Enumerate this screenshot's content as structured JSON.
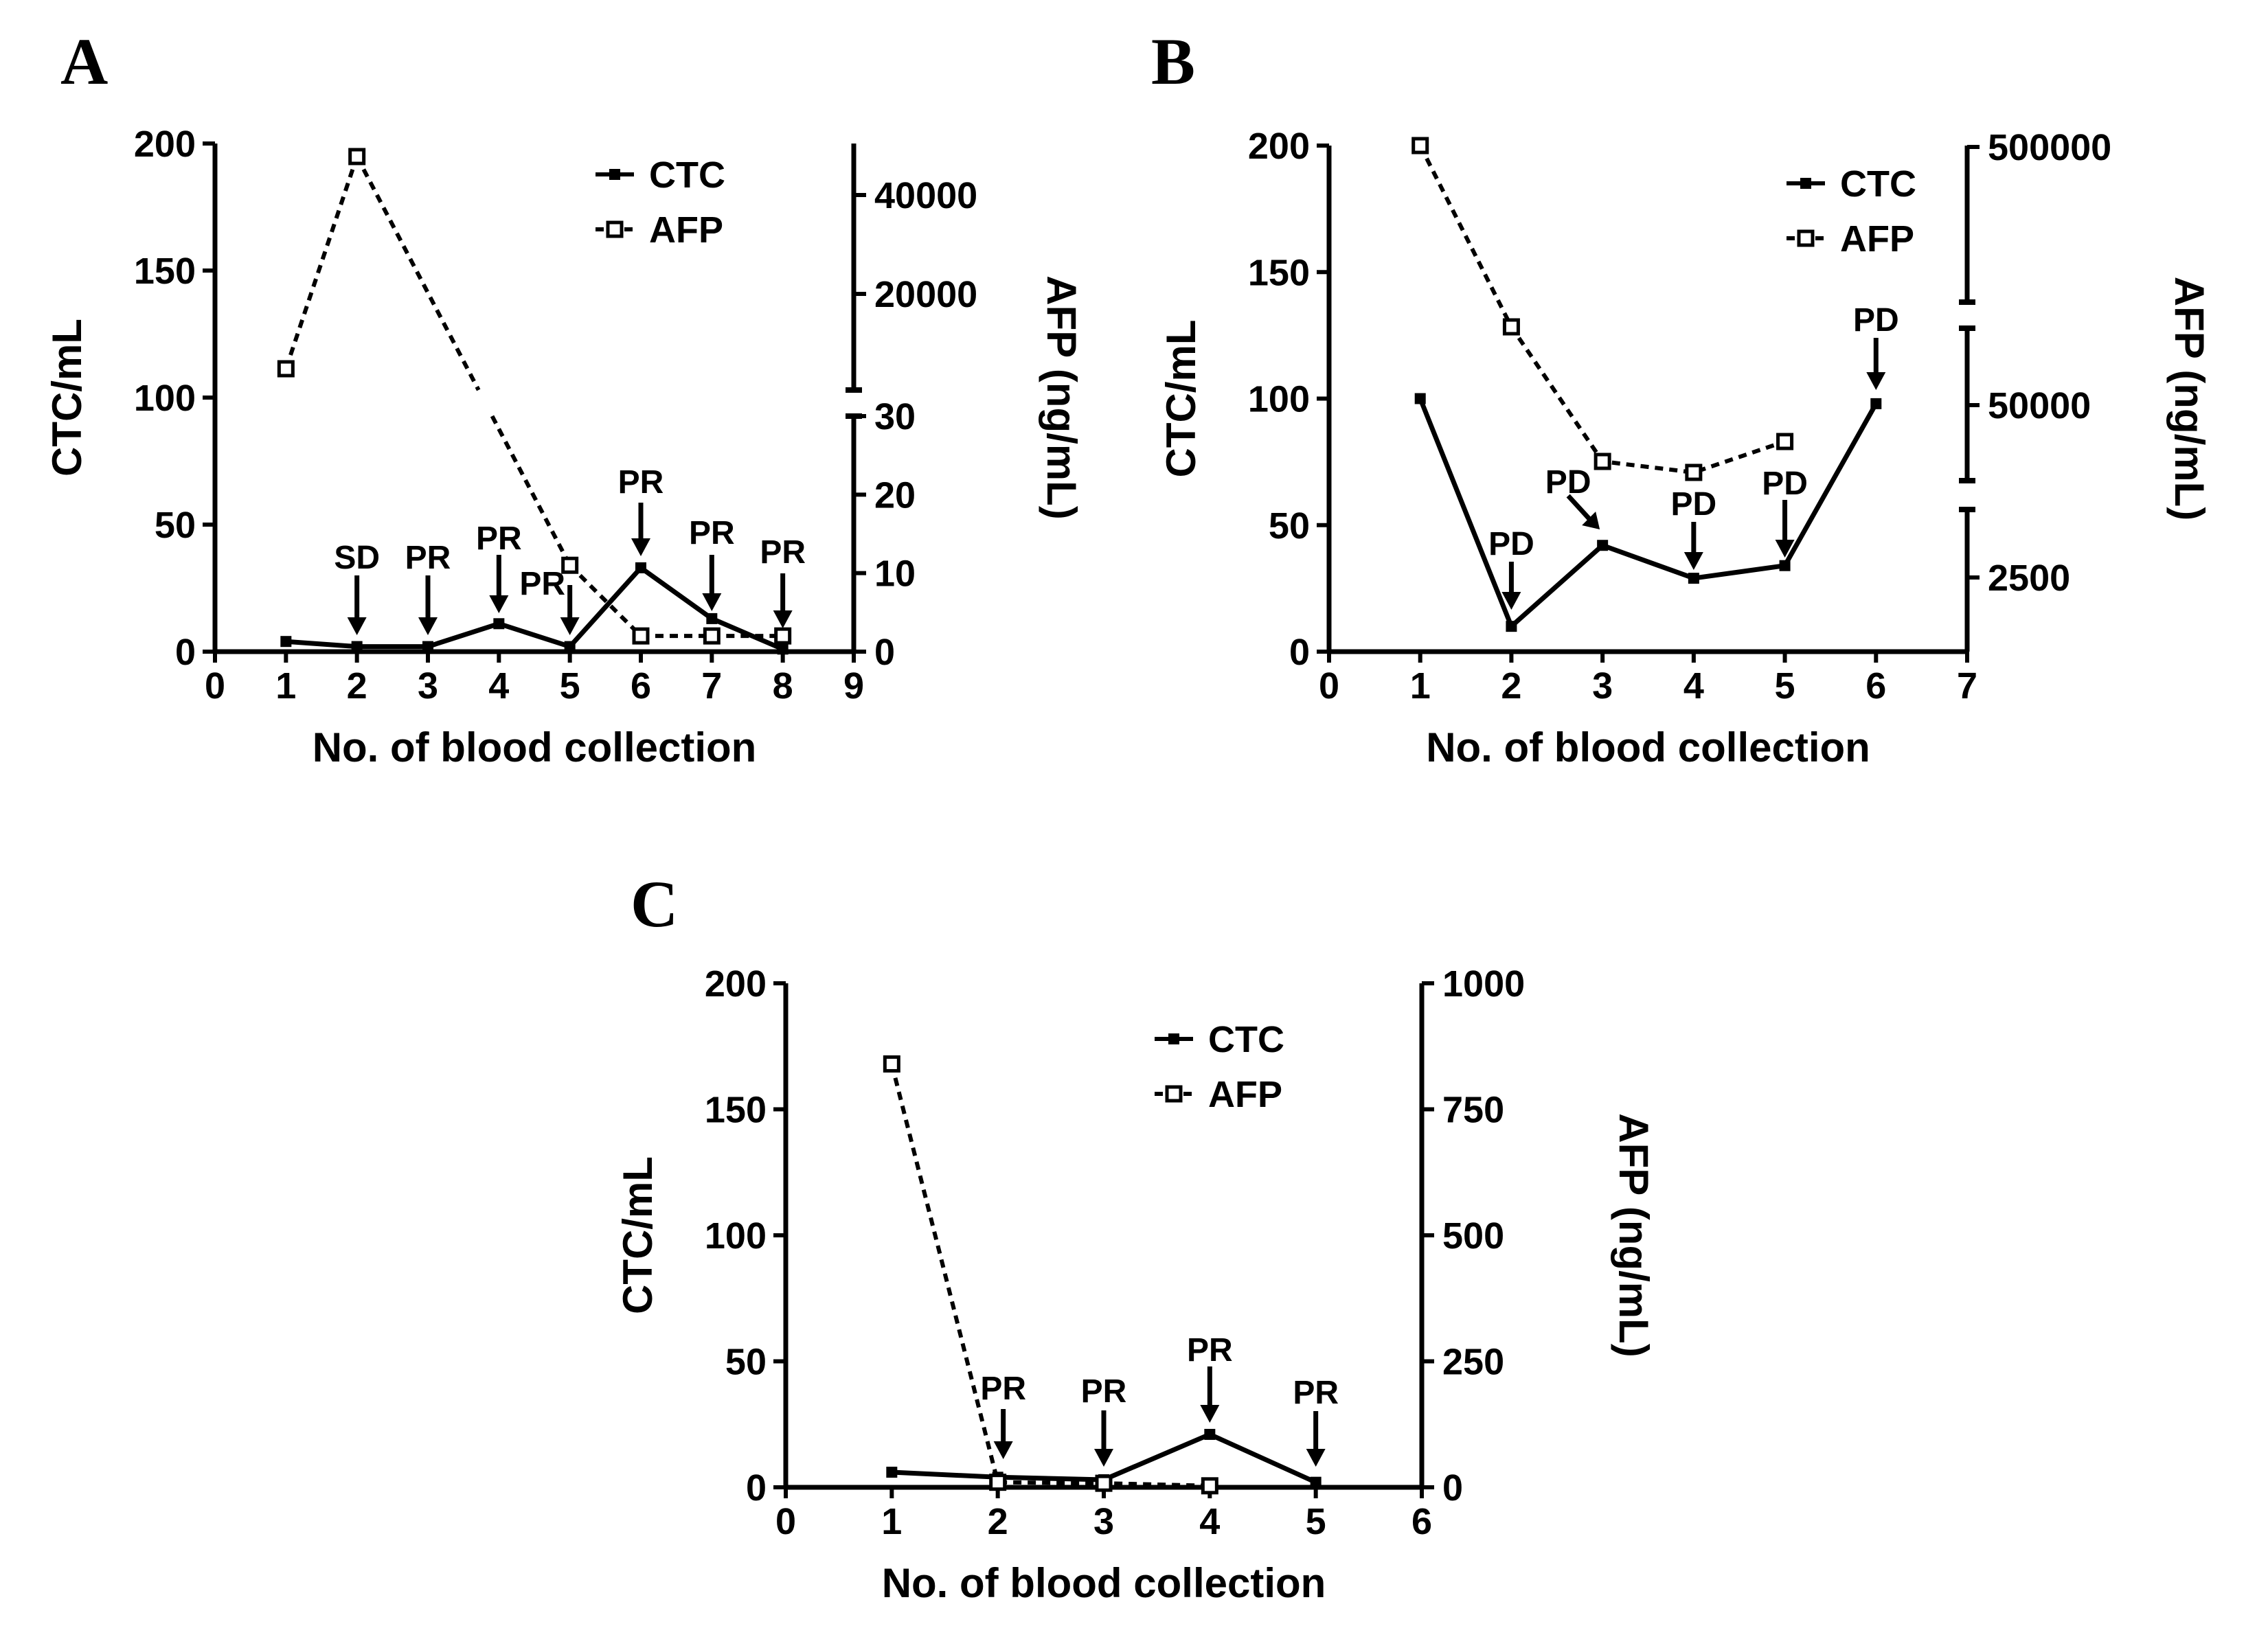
{
  "colors": {
    "ink": "#000000",
    "background": "#ffffff"
  },
  "charts": [
    {
      "panel": "A",
      "chart_data": {
        "type": "line",
        "xlabel": "No. of blood collection",
        "ylabel": "CTC/mL",
        "y2label": "AFP (ng/mL)",
        "xlim": [
          0,
          9
        ],
        "xticks": [
          "0",
          "1",
          "2",
          "3",
          "4",
          "5",
          "6",
          "7",
          "8",
          "9"
        ],
        "ylim": [
          0,
          200
        ],
        "yticks": [
          "0",
          "50",
          "100",
          "150",
          "200"
        ],
        "y2_axis": {
          "broken": true,
          "lower": {
            "ticks": [
              "0",
              "10",
              "20",
              "30"
            ],
            "range": [
              0,
              30
            ]
          },
          "upper": {
            "ticks": [
              "20000",
              "40000"
            ]
          }
        },
        "legend": {
          "position": "top-right",
          "entries": [
            {
              "label": "CTC",
              "style": "solid"
            },
            {
              "label": "AFP",
              "style": "dashed"
            }
          ]
        },
        "series": [
          {
            "name": "CTC",
            "style": "solid",
            "marker": "filled-square",
            "x": [
              1,
              2,
              3,
              4,
              5,
              6,
              7,
              8
            ],
            "y": [
              4,
              2,
              2,
              11,
              2,
              33,
              13,
              1
            ]
          },
          {
            "name": "AFP",
            "style": "dashed",
            "marker": "open-square",
            "x": [
              1,
              2,
              5,
              6,
              7,
              8
            ],
            "y": [
              8400,
              48000,
              11,
              2,
              2,
              2
            ],
            "afp_display": [
              "8400",
              "48000",
              "11",
              "2",
              "2",
              "2"
            ]
          }
        ],
        "annotations": [
          {
            "x": 2,
            "text": "SD"
          },
          {
            "x": 3,
            "text": "PR"
          },
          {
            "x": 4,
            "text": "PR"
          },
          {
            "x": 5,
            "text": "PR"
          },
          {
            "x": 6,
            "text": "PR"
          },
          {
            "x": 7,
            "text": "PR"
          },
          {
            "x": 8,
            "text": "PR"
          }
        ]
      }
    },
    {
      "panel": "B",
      "chart_data": {
        "type": "line",
        "xlabel": "No. of blood collection",
        "ylabel": "CTC/mL",
        "y2label": "AFP (ng/mL)",
        "xlim": [
          0,
          7
        ],
        "xticks": [
          "0",
          "1",
          "2",
          "3",
          "4",
          "5",
          "6",
          "7"
        ],
        "ylim": [
          0,
          200
        ],
        "yticks": [
          "0",
          "50",
          "100",
          "150",
          "200"
        ],
        "y2_axis": {
          "broken": true,
          "ticks": [
            "2500",
            "50000",
            "500000"
          ]
        },
        "legend": {
          "position": "top-right",
          "entries": [
            {
              "label": "CTC",
              "style": "solid"
            },
            {
              "label": "AFP",
              "style": "dashed"
            }
          ]
        },
        "series": [
          {
            "name": "CTC",
            "style": "solid",
            "marker": "filled-square",
            "x": [
              1,
              2,
              3,
              4,
              5,
              6
            ],
            "y": [
              100,
              10,
              42,
              29,
              34,
              98
            ]
          },
          {
            "name": "AFP",
            "style": "dashed",
            "marker": "open-square",
            "x": [
              1,
              2,
              3,
              4,
              5
            ],
            "y": [
              500000,
              180000,
              30000,
              27000,
              40000
            ]
          }
        ],
        "annotations": [
          {
            "x": 2,
            "text": "PD"
          },
          {
            "x": 3,
            "text": "PD"
          },
          {
            "x": 4,
            "text": "PD"
          },
          {
            "x": 5,
            "text": "PD"
          },
          {
            "x": 6,
            "text": "PD"
          }
        ]
      }
    },
    {
      "panel": "C",
      "chart_data": {
        "type": "line",
        "xlabel": "No. of blood collection",
        "ylabel": "CTC/mL",
        "y2label": "AFP (ng/mL)",
        "xlim": [
          0,
          6
        ],
        "xticks": [
          "0",
          "1",
          "2",
          "3",
          "4",
          "5",
          "6"
        ],
        "ylim": [
          0,
          200
        ],
        "yticks": [
          "0",
          "50",
          "100",
          "150",
          "200"
        ],
        "y2lim": [
          0,
          1000
        ],
        "y2ticks": [
          "0",
          "250",
          "500",
          "750",
          "1000"
        ],
        "legend": {
          "position": "top-right",
          "entries": [
            {
              "label": "CTC",
              "style": "solid"
            },
            {
              "label": "AFP",
              "style": "dashed"
            }
          ]
        },
        "series": [
          {
            "name": "CTC",
            "style": "solid",
            "marker": "filled-square",
            "x": [
              1,
              2,
              3,
              4,
              5
            ],
            "y": [
              6,
              4,
              3,
              21,
              2
            ]
          },
          {
            "name": "AFP",
            "style": "dashed",
            "marker": "open-square",
            "x": [
              1,
              2,
              3,
              4
            ],
            "y": [
              840,
              10,
              8,
              3
            ]
          }
        ],
        "annotations": [
          {
            "x": 2,
            "text": "PR"
          },
          {
            "x": 3,
            "text": "PR"
          },
          {
            "x": 4,
            "text": "PR"
          },
          {
            "x": 5,
            "text": "PR"
          }
        ]
      }
    }
  ]
}
